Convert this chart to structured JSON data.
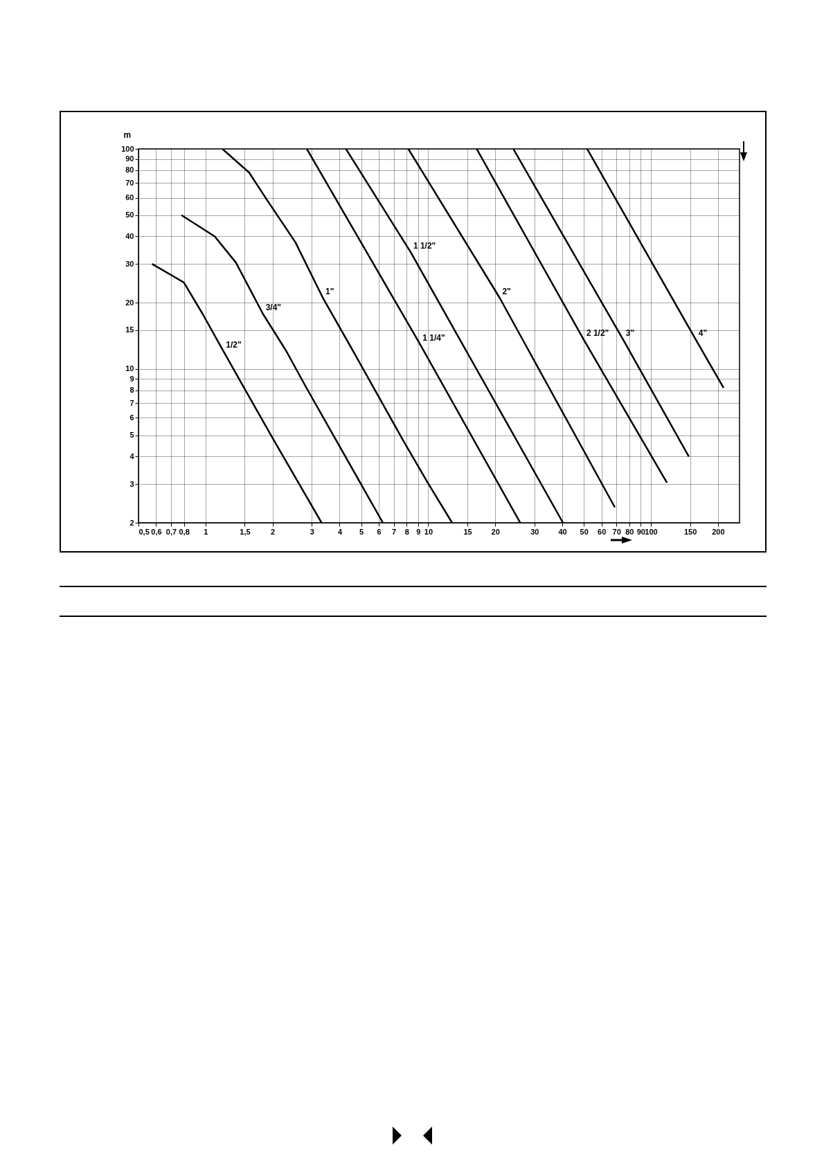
{
  "chart_data": {
    "type": "line",
    "ylabel": "m",
    "log": "xy",
    "grid": true,
    "xlim": [
      0.5,
      250
    ],
    "ylim": [
      2,
      100
    ],
    "xticks": [
      {
        "value": 0.5,
        "label": "0,5"
      },
      {
        "value": 0.6,
        "label": "0,6"
      },
      {
        "value": 0.7,
        "label": "0,7"
      },
      {
        "value": 0.8,
        "label": "0,8"
      },
      1,
      {
        "value": 1.5,
        "label": "1,5"
      },
      2,
      3,
      4,
      5,
      6,
      7,
      8,
      9,
      10,
      15,
      20,
      30,
      40,
      50,
      60,
      70,
      80,
      90,
      100,
      150,
      200
    ],
    "yticks": [
      2,
      3,
      4,
      5,
      6,
      7,
      8,
      9,
      10,
      15,
      20,
      30,
      40,
      50,
      60,
      70,
      80,
      90,
      100
    ],
    "series": [
      {
        "name": "1/2\"",
        "color": "#000000",
        "x": [
          0.575,
          0.8,
          0.97,
          1.2,
          1.49,
          1.99,
          3.32
        ],
        "values": [
          30,
          24.7,
          17.8,
          12.1,
          8.2,
          4.9,
          2.0
        ]
      },
      {
        "name": "3/4\"",
        "color": "#000000",
        "x": [
          0.78,
          1.1,
          1.37,
          1.81,
          2.3,
          2.84,
          6.26
        ],
        "values": [
          50,
          40,
          30.4,
          17.8,
          12.1,
          8.2,
          2.0
        ]
      },
      {
        "name": "1\"",
        "color": "#000000",
        "x": [
          1.19,
          1.57,
          1.9,
          2.53,
          3.36,
          4.59,
          7.75,
          9.95,
          12.8
        ],
        "values": [
          100,
          78,
          58,
          37.7,
          21.1,
          12.1,
          4.7,
          3.04,
          2.0
        ]
      },
      {
        "name": "1 1/4\"",
        "color": "#000000",
        "x": [
          2.85,
          9.17,
          25.9
        ],
        "values": [
          100,
          13.0,
          2.0
        ]
      },
      {
        "name": "1 1/2\"",
        "color": "#000000",
        "x": [
          4.27,
          8.33,
          40.3
        ],
        "values": [
          100,
          34,
          2.0
        ]
      },
      {
        "name": "2\"",
        "color": "#000000",
        "x": [
          8.14,
          20.9,
          68.9
        ],
        "values": [
          100,
          21.1,
          2.35
        ]
      },
      {
        "name": "2 1/2\"",
        "color": "#000000",
        "x": [
          16.5,
          49.9,
          118
        ],
        "values": [
          100,
          13.6,
          3.04
        ]
      },
      {
        "name": "3\"",
        "color": "#000000",
        "x": [
          24.1,
          75,
          148
        ],
        "values": [
          100,
          13.6,
          4.0
        ]
      },
      {
        "name": "4\"",
        "color": "#000000",
        "x": [
          51.7,
          159,
          212
        ],
        "values": [
          100,
          13.6,
          8.2
        ]
      }
    ]
  }
}
